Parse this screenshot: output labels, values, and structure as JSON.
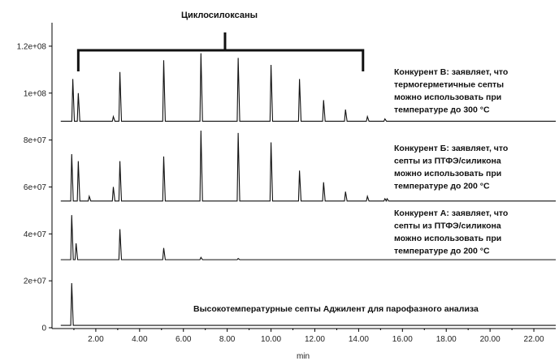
{
  "chart_data": {
    "type": "line",
    "title": "Циклосилоксаны",
    "xlabel": "min",
    "ylabel": "",
    "xlim": [
      0,
      23
    ],
    "ylim": [
      0,
      130000000
    ],
    "grid": false,
    "x_ticks": [
      "2.00",
      "4.00",
      "6.00",
      "8.00",
      "10.00",
      "12.00",
      "14.00",
      "16.00",
      "18.00",
      "20.00",
      "22.00"
    ],
    "y_ticks": [
      "0",
      "2e+07",
      "4e+07",
      "6e+07",
      "8e+07",
      "1e+08",
      "1.2e+08"
    ],
    "traces": [
      {
        "name": "Конкурент В: заявляет, что термогерметичные септы можно использовать при температуре до 300 °С",
        "baseline": 88000000,
        "peaks": [
          [
            0.95,
            106000000
          ],
          [
            1.2,
            100000000
          ],
          [
            2.8,
            90000000
          ],
          [
            3.1,
            109000000
          ],
          [
            5.1,
            114000000
          ],
          [
            6.8,
            117000000
          ],
          [
            8.5,
            115000000
          ],
          [
            10.0,
            112000000
          ],
          [
            11.3,
            106000000
          ],
          [
            12.4,
            97000000
          ],
          [
            13.4,
            93000000
          ],
          [
            14.4,
            90000000
          ],
          [
            15.2,
            89000000
          ]
        ]
      },
      {
        "name": "Конкурент Б: заявляет, что септы из ПТФЭ/силикона можно использовать при температуре до 200 °С",
        "baseline": 54000000,
        "peaks": [
          [
            0.9,
            74000000
          ],
          [
            1.2,
            71000000
          ],
          [
            1.7,
            56000000
          ],
          [
            2.8,
            60000000
          ],
          [
            3.1,
            71000000
          ],
          [
            5.1,
            73000000
          ],
          [
            6.8,
            84000000
          ],
          [
            8.5,
            83000000
          ],
          [
            10.0,
            79000000
          ],
          [
            11.3,
            67000000
          ],
          [
            12.4,
            62000000
          ],
          [
            13.4,
            58000000
          ],
          [
            14.4,
            56000000
          ],
          [
            15.2,
            55000000
          ],
          [
            15.3,
            55000000
          ]
        ]
      },
      {
        "name": "Конкурент А: заявляет, что септы из ПТФЭ/силикона можно использовать при температуре до 200 °С",
        "baseline": 29000000,
        "peaks": [
          [
            0.9,
            48000000
          ],
          [
            1.1,
            36000000
          ],
          [
            3.1,
            42000000
          ],
          [
            5.1,
            34000000
          ],
          [
            6.8,
            30000000
          ],
          [
            8.5,
            29500000
          ]
        ]
      },
      {
        "name": "Высокотемпературные септы Аджилент для парофазного анализа",
        "baseline": 1000000,
        "peaks": [
          [
            0.9,
            19000000
          ]
        ]
      }
    ]
  }
}
